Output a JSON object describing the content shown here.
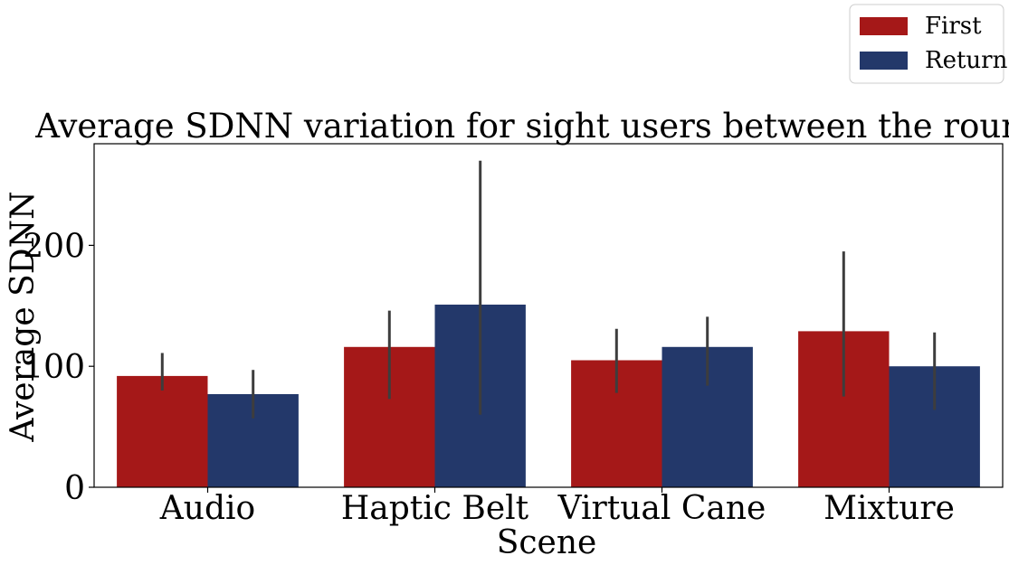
{
  "chart_data": {
    "type": "bar",
    "title": "Average SDNN variation for sight users between the rounds",
    "xlabel": "Scene",
    "ylabel": "Average SDNN",
    "categories": [
      "Audio",
      "Haptic Belt",
      "Virtual Cane",
      "Mixture"
    ],
    "series": [
      {
        "name": "First",
        "color": "#a51818",
        "values": [
          92,
          116,
          105,
          129
        ],
        "error_low": [
          80,
          73,
          78,
          75
        ],
        "error_high": [
          111,
          146,
          131,
          195
        ]
      },
      {
        "name": "Return",
        "color": "#23386a",
        "values": [
          77,
          151,
          116,
          100
        ],
        "error_low": [
          57,
          60,
          84,
          64
        ],
        "error_high": [
          97,
          270,
          141,
          128
        ]
      }
    ],
    "ylim": [
      0,
      284
    ],
    "yticks": [
      "0",
      "100",
      "200"
    ],
    "yticks_values": [
      0,
      100,
      200
    ],
    "grid": false,
    "legend_position": "top-right, outside plot area"
  }
}
